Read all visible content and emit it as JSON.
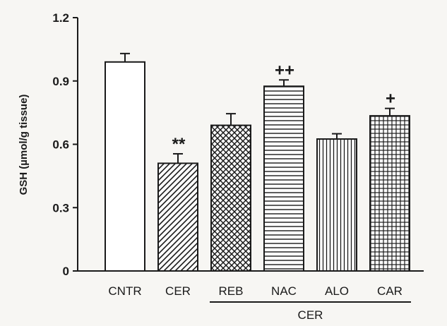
{
  "chart_data": {
    "type": "bar",
    "ylabel": "GSH (µmol/g tissue)",
    "ylim": [
      0,
      1.2
    ],
    "yticks": [
      "0",
      "0.3",
      "0.6",
      "0.9",
      "1.2"
    ],
    "ytick_values": [
      0,
      0.3,
      0.6,
      0.9,
      1.2
    ],
    "categories": [
      "CNTR",
      "CER",
      "REB",
      "NAC",
      "ALO",
      "CAR"
    ],
    "values": [
      0.99,
      0.51,
      0.69,
      0.875,
      0.625,
      0.735
    ],
    "errors": [
      0.04,
      0.045,
      0.055,
      0.03,
      0.025,
      0.035
    ],
    "patterns": [
      "none",
      "diagonal",
      "crosshatch",
      "horizontal",
      "vertical",
      "grid"
    ],
    "significance": [
      "",
      "**",
      "",
      "++",
      "",
      "+"
    ],
    "group_bracket": {
      "label": "CER",
      "from": "REB",
      "to": "CAR"
    },
    "colors": {
      "ink": "#1a1a1a",
      "bar_fill": "#ffffff",
      "background": "#f7f6f3"
    }
  }
}
